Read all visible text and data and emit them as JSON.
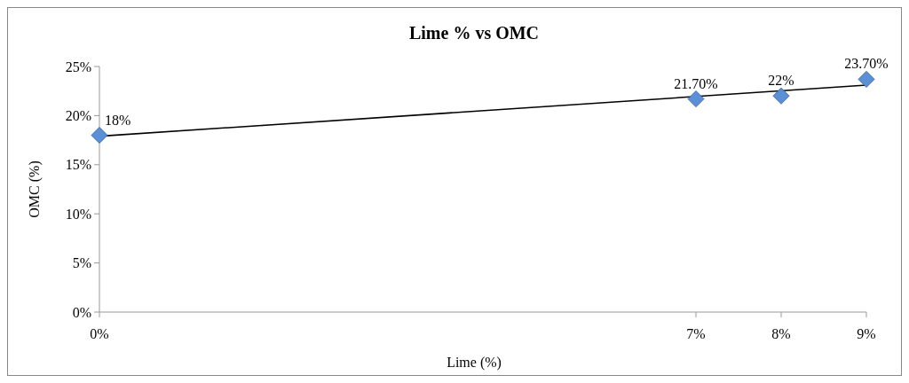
{
  "chart_data": {
    "type": "scatter",
    "title": "Lime % vs OMC",
    "xlabel": "Lime (%)",
    "ylabel": "OMC (%)",
    "x": [
      0,
      7,
      8,
      9
    ],
    "series": [
      {
        "color": "#5b8fd6",
        "values": [
          18,
          21.7,
          22,
          23.7
        ],
        "value_labels": [
          "18%",
          "21.70%",
          "22%",
          "23.70%"
        ],
        "marker": "diamond"
      },
      {
        "type": "line",
        "color": "#000000",
        "x": [
          0,
          9
        ],
        "values": [
          17.9,
          23.1
        ],
        "marker": "none",
        "line_style": "solid"
      }
    ],
    "xlim": [
      0,
      9
    ],
    "xticks": [
      {
        "value": 0,
        "label": "0%"
      },
      {
        "value": 7,
        "label": "7%"
      },
      {
        "value": 8,
        "label": "8%"
      },
      {
        "value": 9,
        "label": "9%"
      }
    ],
    "ylim": [
      0,
      25
    ],
    "yticks": [
      {
        "value": 0,
        "label": "0%"
      },
      {
        "value": 5,
        "label": "5%"
      },
      {
        "value": 10,
        "label": "10%"
      },
      {
        "value": 15,
        "label": "15%"
      },
      {
        "value": 20,
        "label": "20%"
      },
      {
        "value": 25,
        "label": "25%"
      }
    ],
    "grid": false
  }
}
